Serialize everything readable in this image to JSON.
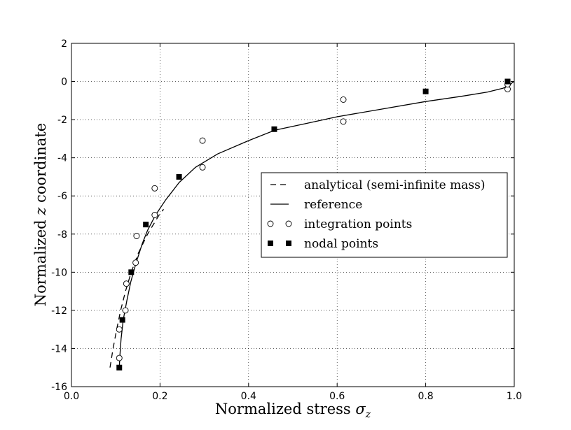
{
  "chart_data": {
    "type": "line",
    "title": "",
    "xlabel_prefix": "Normalized stress ",
    "xlabel_symbol": "σ",
    "xlabel_subscript": "z",
    "ylabel_prefix": "Normalized ",
    "ylabel_symbol": "z",
    "ylabel_suffix": " coordinate",
    "xlim": [
      0.0,
      1.0
    ],
    "ylim": [
      -16,
      2
    ],
    "x_ticks": [
      0.0,
      0.2,
      0.4,
      0.6,
      0.8,
      1.0
    ],
    "x_tick_labels": [
      "0.0",
      "0.2",
      "0.4",
      "0.6",
      "0.8",
      "1.0"
    ],
    "y_ticks": [
      2,
      0,
      -2,
      -4,
      -6,
      -8,
      -10,
      -12,
      -14,
      -16
    ],
    "y_tick_labels": [
      "2",
      "0",
      "-2",
      "-4",
      "-6",
      "-8",
      "-10",
      "-12",
      "-14",
      "-16"
    ],
    "grid": true,
    "grid_style": "dotted",
    "legend_position": "center-right",
    "series": [
      {
        "name": "analytical (semi-infinite mass)",
        "style": "dashed-line",
        "color": "#000000",
        "points": [
          [
            0.087,
            -15.0
          ],
          [
            0.094,
            -14.0
          ],
          [
            0.102,
            -13.0
          ],
          [
            0.111,
            -12.0
          ],
          [
            0.122,
            -11.0
          ],
          [
            0.135,
            -10.0
          ],
          [
            0.151,
            -9.0
          ],
          [
            0.172,
            -8.0
          ],
          [
            0.198,
            -7.0
          ],
          [
            0.208,
            -6.7
          ]
        ]
      },
      {
        "name": "reference",
        "style": "solid-line",
        "color": "#000000",
        "points": [
          [
            0.108,
            -15.0
          ],
          [
            0.109,
            -14.5
          ],
          [
            0.112,
            -13.5
          ],
          [
            0.117,
            -12.5
          ],
          [
            0.125,
            -11.5
          ],
          [
            0.134,
            -10.5
          ],
          [
            0.146,
            -9.5
          ],
          [
            0.16,
            -8.5
          ],
          [
            0.172,
            -7.8
          ],
          [
            0.19,
            -7.0
          ],
          [
            0.213,
            -6.2
          ],
          [
            0.243,
            -5.3
          ],
          [
            0.28,
            -4.5
          ],
          [
            0.33,
            -3.8
          ],
          [
            0.4,
            -3.1
          ],
          [
            0.46,
            -2.55
          ],
          [
            0.53,
            -2.2
          ],
          [
            0.6,
            -1.85
          ],
          [
            0.7,
            -1.45
          ],
          [
            0.8,
            -1.05
          ],
          [
            0.88,
            -0.78
          ],
          [
            0.94,
            -0.55
          ],
          [
            0.975,
            -0.35
          ],
          [
            0.99,
            -0.18
          ],
          [
            0.996,
            -0.05
          ],
          [
            1.0,
            0.0
          ]
        ]
      },
      {
        "name": "integration points",
        "style": "open-circle-markers",
        "color": "#000000",
        "points": [
          [
            0.108,
            -14.5
          ],
          [
            0.108,
            -13.0
          ],
          [
            0.122,
            -12.0
          ],
          [
            0.124,
            -10.6
          ],
          [
            0.145,
            -9.5
          ],
          [
            0.147,
            -8.1
          ],
          [
            0.188,
            -7.0
          ],
          [
            0.188,
            -5.6
          ],
          [
            0.296,
            -4.5
          ],
          [
            0.296,
            -3.1
          ],
          [
            0.614,
            -2.1
          ],
          [
            0.614,
            -0.95
          ],
          [
            0.985,
            -0.4
          ],
          [
            0.985,
            -0.15
          ]
        ]
      },
      {
        "name": "nodal points",
        "style": "filled-square-markers",
        "color": "#000000",
        "points": [
          [
            0.108,
            -15.0
          ],
          [
            0.115,
            -12.5
          ],
          [
            0.135,
            -10.0
          ],
          [
            0.168,
            -7.5
          ],
          [
            0.243,
            -5.0
          ],
          [
            0.458,
            -2.5
          ],
          [
            0.8,
            -0.52
          ],
          [
            0.985,
            0.0
          ]
        ]
      }
    ]
  }
}
